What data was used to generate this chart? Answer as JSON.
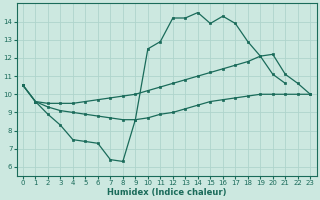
{
  "xlabel": "Humidex (Indice chaleur)",
  "xlim": [
    -0.5,
    23.5
  ],
  "ylim": [
    5.5,
    15.0
  ],
  "yticks": [
    6,
    7,
    8,
    9,
    10,
    11,
    12,
    13,
    14
  ],
  "xticks": [
    0,
    1,
    2,
    3,
    4,
    5,
    6,
    7,
    8,
    9,
    10,
    11,
    12,
    13,
    14,
    15,
    16,
    17,
    18,
    19,
    20,
    21,
    22,
    23
  ],
  "bg_color": "#cce8e0",
  "grid_color": "#b0d8d0",
  "line_color": "#1a6b5a",
  "line1_x": [
    0,
    1,
    2,
    3,
    4,
    5,
    6,
    7,
    8,
    9,
    10,
    11,
    12,
    13,
    14,
    15,
    16,
    17,
    18,
    19,
    20,
    21,
    22,
    23
  ],
  "line1_y": [
    10.5,
    9.6,
    8.9,
    8.3,
    7.5,
    7.4,
    7.3,
    6.4,
    6.3,
    8.6,
    12.5,
    12.9,
    14.2,
    14.2,
    14.5,
    13.9,
    14.3,
    13.9,
    12.9,
    12.1,
    11.1,
    10.6,
    null,
    null
  ],
  "line2_x": [
    0,
    1,
    2,
    3,
    4,
    5,
    6,
    7,
    8,
    9,
    10,
    11,
    12,
    13,
    14,
    15,
    16,
    17,
    18,
    19,
    20,
    21,
    22,
    23
  ],
  "line2_y": [
    10.5,
    9.6,
    9.5,
    9.5,
    9.5,
    9.6,
    9.7,
    9.8,
    9.9,
    10.0,
    10.2,
    10.4,
    10.6,
    10.8,
    11.0,
    11.2,
    11.4,
    11.6,
    11.8,
    12.1,
    12.2,
    11.1,
    10.6,
    10.0
  ],
  "line3_x": [
    0,
    1,
    2,
    3,
    4,
    5,
    6,
    7,
    8,
    9,
    10,
    11,
    12,
    13,
    14,
    15,
    16,
    17,
    18,
    19,
    20,
    21,
    22,
    23
  ],
  "line3_y": [
    10.5,
    9.6,
    9.3,
    9.1,
    9.0,
    8.9,
    8.8,
    8.7,
    8.6,
    8.6,
    8.7,
    8.9,
    9.0,
    9.2,
    9.4,
    9.6,
    9.7,
    9.8,
    9.9,
    10.0,
    10.0,
    10.0,
    10.0,
    10.0
  ]
}
